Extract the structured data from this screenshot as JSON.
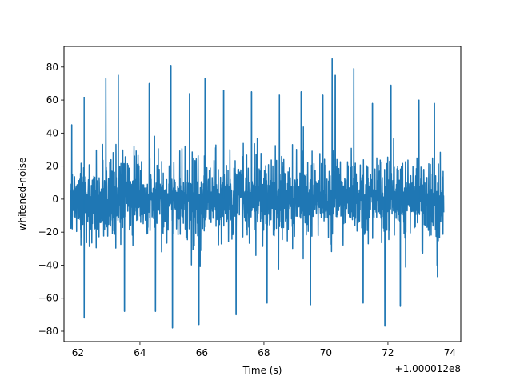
{
  "chart_data": {
    "type": "line",
    "title": "",
    "xlabel": "Time (s)",
    "ylabel": "whitened-noise",
    "x_offset_label": "+1.000012e8",
    "xlim": [
      61.55,
      74.35
    ],
    "ylim": [
      -86.3,
      92.5
    ],
    "x_ticks": [
      62,
      64,
      66,
      68,
      70,
      72,
      74
    ],
    "y_ticks": [
      -80,
      -60,
      -40,
      -20,
      0,
      20,
      40,
      60,
      80
    ],
    "grid": false,
    "legend": "none",
    "x_range": [
      61.75,
      73.8
    ],
    "line_color": "#1f77b4",
    "series": [
      {
        "peaks": [
          {
            "x": 61.8,
            "y": 45
          },
          {
            "x": 62.2,
            "y": 62
          },
          {
            "x": 62.2,
            "y": -72
          },
          {
            "x": 62.9,
            "y": 73
          },
          {
            "x": 63.3,
            "y": 75
          },
          {
            "x": 63.5,
            "y": -68
          },
          {
            "x": 64.3,
            "y": 70
          },
          {
            "x": 64.5,
            "y": -68
          },
          {
            "x": 65.0,
            "y": 81
          },
          {
            "x": 65.05,
            "y": -78
          },
          {
            "x": 65.6,
            "y": 64
          },
          {
            "x": 65.9,
            "y": -76
          },
          {
            "x": 66.1,
            "y": 73
          },
          {
            "x": 66.7,
            "y": 66
          },
          {
            "x": 67.1,
            "y": -70
          },
          {
            "x": 67.6,
            "y": 65
          },
          {
            "x": 68.1,
            "y": -63
          },
          {
            "x": 68.5,
            "y": 63
          },
          {
            "x": 69.2,
            "y": 65
          },
          {
            "x": 69.5,
            "y": -64
          },
          {
            "x": 69.9,
            "y": 63
          },
          {
            "x": 70.2,
            "y": 85
          },
          {
            "x": 70.3,
            "y": 75
          },
          {
            "x": 70.9,
            "y": 79
          },
          {
            "x": 71.2,
            "y": -63
          },
          {
            "x": 71.5,
            "y": 58
          },
          {
            "x": 71.9,
            "y": -77
          },
          {
            "x": 72.1,
            "y": 69
          },
          {
            "x": 72.4,
            "y": -65
          },
          {
            "x": 73.0,
            "y": 60
          },
          {
            "x": 73.5,
            "y": 58
          },
          {
            "x": 73.6,
            "y": -47
          }
        ],
        "typical_envelope": [
          -45,
          45
        ]
      }
    ]
  }
}
